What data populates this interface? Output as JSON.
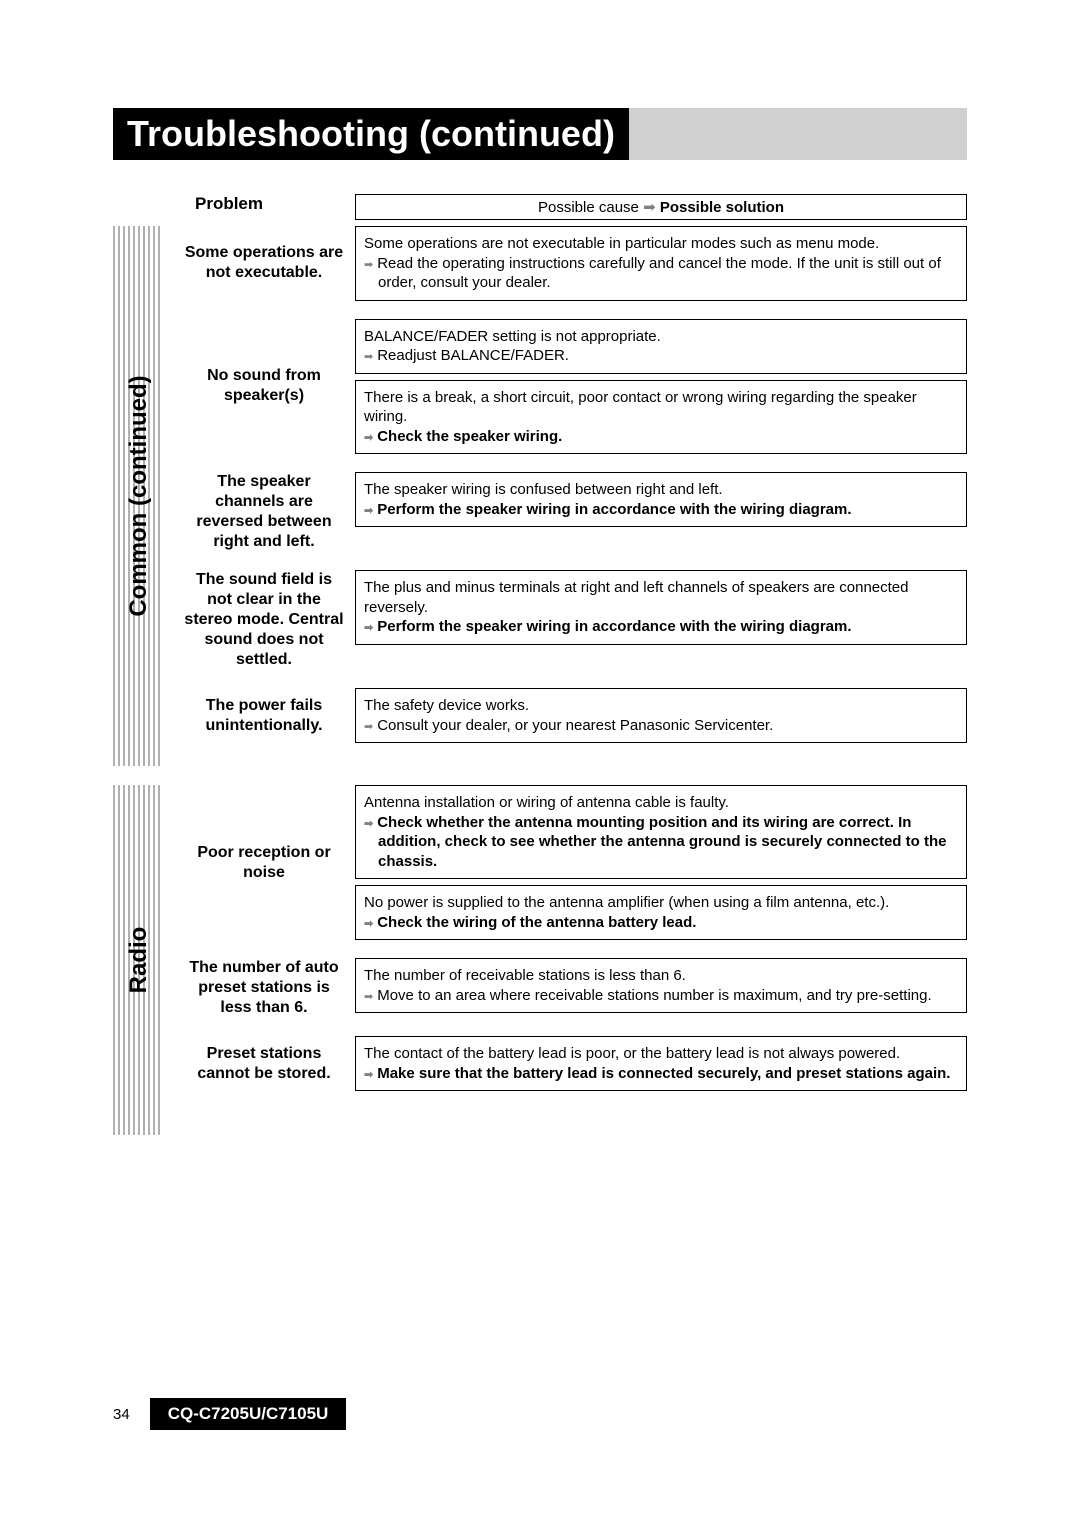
{
  "header": {
    "title": "Troubleshooting (continued)"
  },
  "columns": {
    "problem": "Problem",
    "possible_cause": "Possible cause",
    "possible_solution": "Possible solution"
  },
  "sections": {
    "common": {
      "label": "Common (continued)",
      "rows": [
        {
          "problem": "Some operations are not executable.",
          "boxes": [
            {
              "cause": "Some operations are not executable in particular modes such as menu mode.",
              "solution": "Read the operating instructions carefully and cancel the mode. If the unit is still out of order, consult your dealer.",
              "solution_bold": false
            }
          ]
        },
        {
          "problem": "No sound from speaker(s)",
          "boxes": [
            {
              "cause": "BALANCE/FADER setting is not appropriate.",
              "solution": "Readjust BALANCE/FADER.",
              "solution_bold": false
            },
            {
              "cause": "There is a break, a short circuit, poor contact or wrong wiring regarding the speaker wiring.",
              "solution": "Check the speaker wiring.",
              "solution_bold": true
            }
          ]
        },
        {
          "problem": "The speaker channels are reversed between right and left.",
          "boxes": [
            {
              "cause": "The speaker wiring is confused between right and left.",
              "solution": "Perform the speaker wiring in accordance with the wiring diagram.",
              "solution_bold": true
            }
          ]
        },
        {
          "problem": "The sound field is not clear in the stereo mode. Central sound does not settled.",
          "boxes": [
            {
              "cause": "The plus and minus terminals at right and left channels of speakers are connected reversely.",
              "solution": "Perform the speaker wiring in accordance with the wiring diagram.",
              "solution_bold": true
            }
          ]
        },
        {
          "problem": "The power fails unintentionally.",
          "boxes": [
            {
              "cause": "The safety device works.",
              "solution": "Consult your dealer, or your nearest Panasonic Servicenter.",
              "solution_bold": false
            }
          ]
        }
      ]
    },
    "radio": {
      "label": "Radio",
      "rows": [
        {
          "problem": "Poor reception or noise",
          "boxes": [
            {
              "cause": "Antenna installation or wiring of antenna cable is faulty.",
              "solution": "Check whether the antenna mounting position and its wiring are correct. In addition, check to see whether the antenna ground is securely connected to the chassis.",
              "solution_bold": true
            },
            {
              "cause": "No power is supplied to the antenna amplifier (when using a film antenna, etc.).",
              "solution": "Check the wiring of the antenna battery lead.",
              "solution_bold": true
            }
          ]
        },
        {
          "problem": "The number of auto preset stations is less than 6.",
          "boxes": [
            {
              "cause": "The number of receivable stations is less than 6.",
              "solution": "Move to an area where receivable stations number is maximum, and try pre-setting.",
              "solution_bold": false
            }
          ]
        },
        {
          "problem": "Preset stations cannot be stored.",
          "boxes": [
            {
              "cause": "The contact of the battery lead is poor, or the battery lead is not always powered.",
              "solution": "Make sure that the battery lead is connected securely, and preset stations again.",
              "solution_bold": true
            }
          ]
        }
      ]
    }
  },
  "footer": {
    "page": "34",
    "model": "CQ-C7205U/C7105U"
  },
  "colors": {
    "black": "#000000",
    "white": "#ffffff",
    "header_grey": "#d0d0d0",
    "stripe_grey": "#b0b0b0",
    "arrow_grey": "#808080"
  }
}
